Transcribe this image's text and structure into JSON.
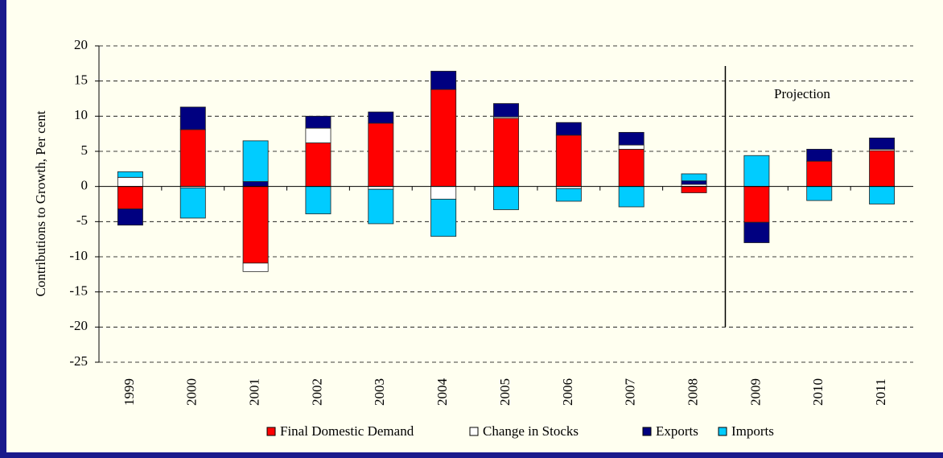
{
  "chart_data": {
    "type": "stacked_bar",
    "y_label": "Contributions to Growth, Per cent",
    "annotation": "Projection",
    "categories": [
      "1999",
      "2000",
      "2001",
      "2002",
      "2003",
      "2004",
      "2005",
      "2006",
      "2007",
      "2008",
      "2009",
      "2010",
      "2011"
    ],
    "series": [
      {
        "name": "Final Domestic Demand",
        "color": "#ff0000",
        "values": [
          -3.2,
          8.1,
          -10.9,
          6.2,
          9.0,
          13.8,
          9.7,
          7.3,
          5.3,
          -0.9,
          -5.1,
          3.6,
          5.1
        ]
      },
      {
        "name": "Change in Stocks",
        "color": "#ffffff",
        "values": [
          1.3,
          -0.2,
          -1.2,
          2.1,
          -0.4,
          -1.8,
          0.2,
          -0.3,
          0.6,
          0.3,
          0,
          0,
          0.2
        ]
      },
      {
        "name": "Exports",
        "color": "#000080",
        "values": [
          -2.3,
          3.2,
          0.7,
          1.7,
          1.6,
          2.6,
          1.9,
          1.8,
          1.8,
          0.5,
          -2.9,
          1.7,
          1.6
        ]
      },
      {
        "name": "Imports",
        "color": "#00ccff",
        "values": [
          0.8,
          -4.3,
          5.8,
          -3.9,
          -4.9,
          -5.3,
          -3.3,
          -1.8,
          -2.9,
          1.0,
          4.4,
          -2.0,
          -2.5
        ]
      }
    ],
    "ylim": [
      -25,
      20
    ],
    "yticks": [
      -25,
      -20,
      -15,
      -10,
      -5,
      0,
      5,
      10,
      15,
      20
    ],
    "grid": true,
    "legend": "bottom"
  }
}
